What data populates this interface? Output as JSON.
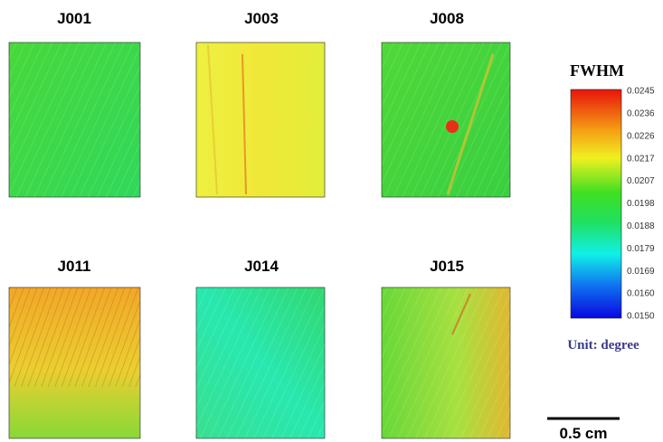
{
  "panels": [
    {
      "label": "J001"
    },
    {
      "label": "J003"
    },
    {
      "label": "J008"
    },
    {
      "label": "J011"
    },
    {
      "label": "J014"
    },
    {
      "label": "J015"
    }
  ],
  "colorbar": {
    "title": "FWHM",
    "ticks": [
      "0.0245",
      "0.0236",
      "0.0226",
      "0.0217",
      "0.0207",
      "0.0198",
      "0.0188",
      "0.0179",
      "0.0169",
      "0.0160",
      "0.0150"
    ],
    "unit": "Unit: degree"
  },
  "scale_bar": {
    "label": "0.5 cm"
  }
}
